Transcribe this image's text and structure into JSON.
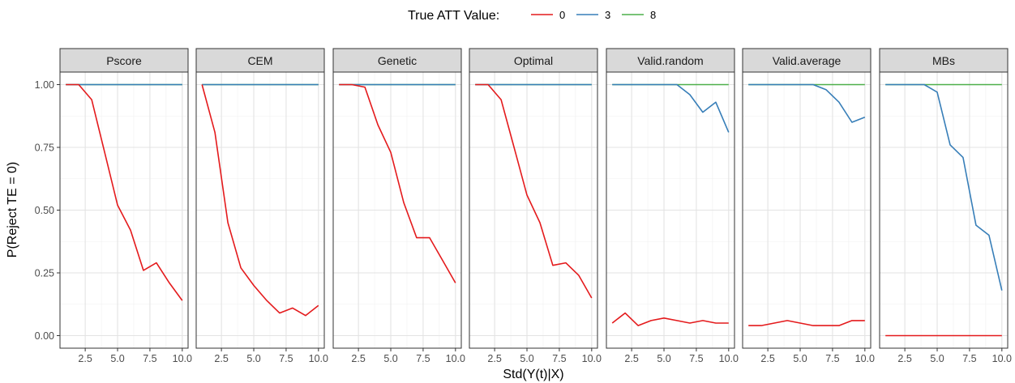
{
  "chart_data": {
    "type": "line",
    "xlabel": "Std(Y(t)|X)",
    "ylabel": "P(Reject TE = 0)",
    "xlim": [
      0.55,
      10.45
    ],
    "ylim": [
      -0.05,
      1.05
    ],
    "x_ticks": [
      2.5,
      5.0,
      7.5,
      10.0
    ],
    "x_tick_labels": [
      "2.5",
      "5.0",
      "7.5",
      "10.0"
    ],
    "y_ticks": [
      0,
      0.25,
      0.5,
      0.75,
      1.0
    ],
    "y_tick_labels": [
      "0.00",
      "0.25",
      "0.50",
      "0.75",
      "1.00"
    ],
    "grid": true,
    "legend": {
      "title": "True ATT Value:",
      "position": "top",
      "entries": [
        {
          "label": "0",
          "color": "#e41a1c"
        },
        {
          "label": "3",
          "color": "#377eb8"
        },
        {
          "label": "8",
          "color": "#4daf4a"
        }
      ]
    },
    "x": [
      1,
      2,
      3,
      4,
      5,
      6,
      7,
      8,
      9,
      10
    ],
    "panels": [
      {
        "name": "Pscore",
        "series": [
          {
            "name": "0",
            "values": [
              1.0,
              1.0,
              0.94,
              0.73,
              0.52,
              0.42,
              0.26,
              0.29,
              0.21,
              0.14
            ]
          },
          {
            "name": "3",
            "values": [
              1.0,
              1.0,
              1.0,
              1.0,
              1.0,
              1.0,
              1.0,
              1.0,
              1.0,
              1.0
            ]
          },
          {
            "name": "8",
            "values": [
              1.0,
              1.0,
              1.0,
              1.0,
              1.0,
              1.0,
              1.0,
              1.0,
              1.0,
              1.0
            ]
          }
        ]
      },
      {
        "name": "CEM",
        "series": [
          {
            "name": "0",
            "values": [
              1.0,
              0.81,
              0.45,
              0.27,
              0.2,
              0.14,
              0.09,
              0.11,
              0.08,
              0.12
            ]
          },
          {
            "name": "3",
            "values": [
              1.0,
              1.0,
              1.0,
              1.0,
              1.0,
              1.0,
              1.0,
              1.0,
              1.0,
              1.0
            ]
          },
          {
            "name": "8",
            "values": [
              1.0,
              1.0,
              1.0,
              1.0,
              1.0,
              1.0,
              1.0,
              1.0,
              1.0,
              1.0
            ]
          }
        ]
      },
      {
        "name": "Genetic",
        "series": [
          {
            "name": "0",
            "values": [
              1.0,
              1.0,
              0.99,
              0.84,
              0.73,
              0.53,
              0.39,
              0.39,
              0.3,
              0.21
            ]
          },
          {
            "name": "3",
            "values": [
              1.0,
              1.0,
              1.0,
              1.0,
              1.0,
              1.0,
              1.0,
              1.0,
              1.0,
              1.0
            ]
          },
          {
            "name": "8",
            "values": [
              1.0,
              1.0,
              1.0,
              1.0,
              1.0,
              1.0,
              1.0,
              1.0,
              1.0,
              1.0
            ]
          }
        ]
      },
      {
        "name": "Optimal",
        "series": [
          {
            "name": "0",
            "values": [
              1.0,
              1.0,
              0.94,
              0.75,
              0.56,
              0.45,
              0.28,
              0.29,
              0.24,
              0.15
            ]
          },
          {
            "name": "3",
            "values": [
              1.0,
              1.0,
              1.0,
              1.0,
              1.0,
              1.0,
              1.0,
              1.0,
              1.0,
              1.0
            ]
          },
          {
            "name": "8",
            "values": [
              1.0,
              1.0,
              1.0,
              1.0,
              1.0,
              1.0,
              1.0,
              1.0,
              1.0,
              1.0
            ]
          }
        ]
      },
      {
        "name": "Valid.random",
        "series": [
          {
            "name": "0",
            "values": [
              0.05,
              0.09,
              0.04,
              0.06,
              0.07,
              0.06,
              0.05,
              0.06,
              0.05,
              0.05
            ]
          },
          {
            "name": "3",
            "values": [
              1.0,
              1.0,
              1.0,
              1.0,
              1.0,
              1.0,
              0.96,
              0.89,
              0.93,
              0.81
            ]
          },
          {
            "name": "8",
            "values": [
              1.0,
              1.0,
              1.0,
              1.0,
              1.0,
              1.0,
              1.0,
              1.0,
              1.0,
              1.0
            ]
          }
        ]
      },
      {
        "name": "Valid.average",
        "series": [
          {
            "name": "0",
            "values": [
              0.04,
              0.04,
              0.05,
              0.06,
              0.05,
              0.04,
              0.04,
              0.04,
              0.06,
              0.06
            ]
          },
          {
            "name": "3",
            "values": [
              1.0,
              1.0,
              1.0,
              1.0,
              1.0,
              1.0,
              0.98,
              0.93,
              0.85,
              0.87
            ]
          },
          {
            "name": "8",
            "values": [
              1.0,
              1.0,
              1.0,
              1.0,
              1.0,
              1.0,
              1.0,
              1.0,
              1.0,
              1.0
            ]
          }
        ]
      },
      {
        "name": "MBs",
        "series": [
          {
            "name": "0",
            "values": [
              0.0,
              0.0,
              0.0,
              0.0,
              0.0,
              0.0,
              0.0,
              0.0,
              0.0,
              0.0
            ]
          },
          {
            "name": "3",
            "values": [
              1.0,
              1.0,
              1.0,
              1.0,
              0.97,
              0.76,
              0.71,
              0.44,
              0.4,
              0.18
            ]
          },
          {
            "name": "8",
            "values": [
              1.0,
              1.0,
              1.0,
              1.0,
              1.0,
              1.0,
              1.0,
              1.0,
              1.0,
              1.0
            ]
          }
        ]
      }
    ]
  }
}
